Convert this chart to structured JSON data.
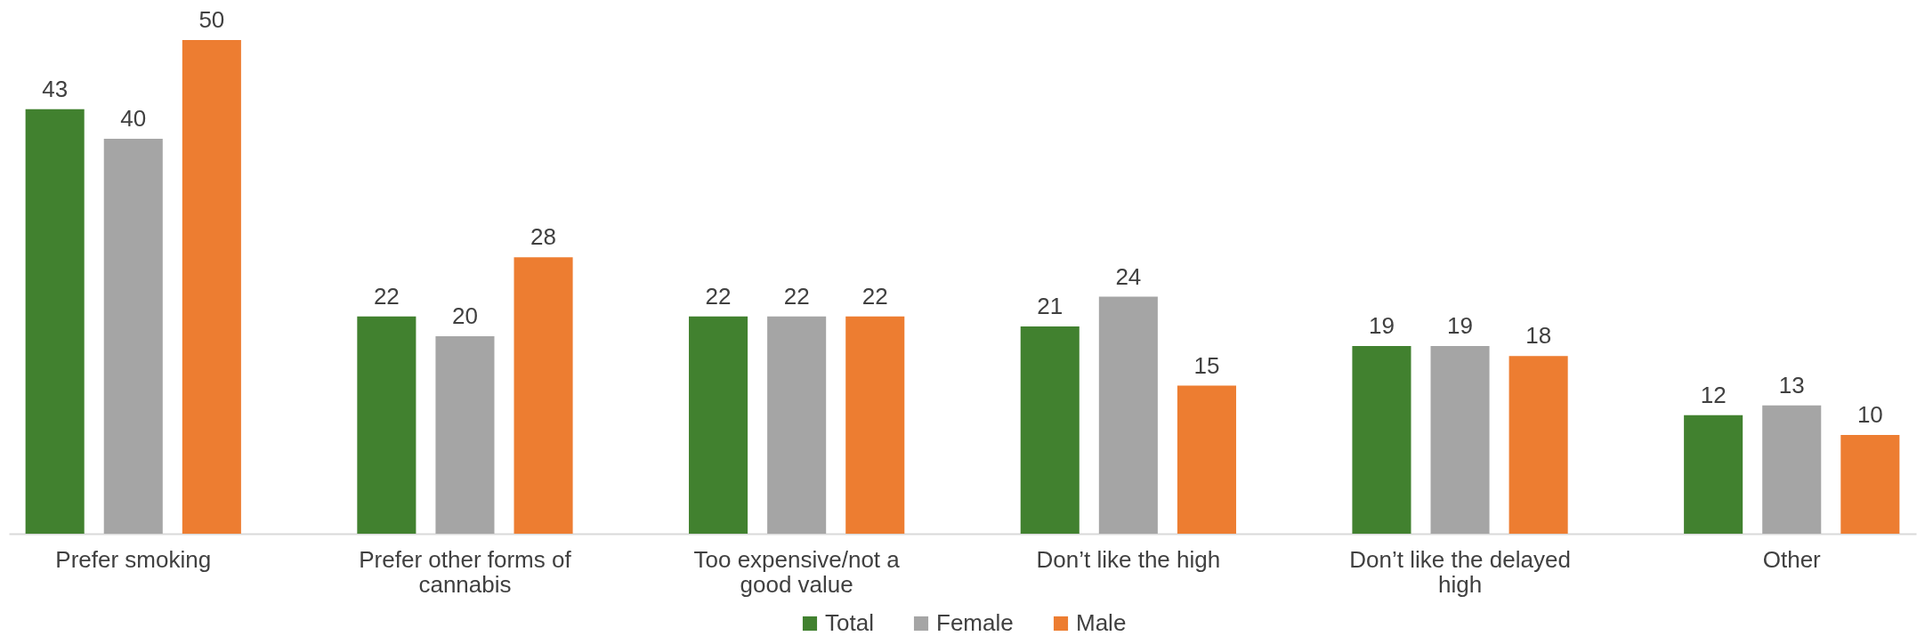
{
  "chart_data": {
    "type": "bar",
    "categories": [
      "Prefer smoking",
      "Prefer other forms of cannabis",
      "Too expensive/not a good value",
      "Don’t like the high",
      "Don’t like the delayed high",
      "Other"
    ],
    "series": [
      {
        "name": "Total",
        "color": "#41812f",
        "values": [
          43,
          22,
          22,
          21,
          19,
          12
        ]
      },
      {
        "name": "Female",
        "color": "#a5a5a5",
        "values": [
          40,
          20,
          22,
          24,
          19,
          13
        ]
      },
      {
        "name": "Male",
        "color": "#ed7d31",
        "values": [
          50,
          28,
          22,
          15,
          18,
          10
        ]
      }
    ],
    "data_labels": true,
    "legend": "bottom",
    "grid": false
  }
}
